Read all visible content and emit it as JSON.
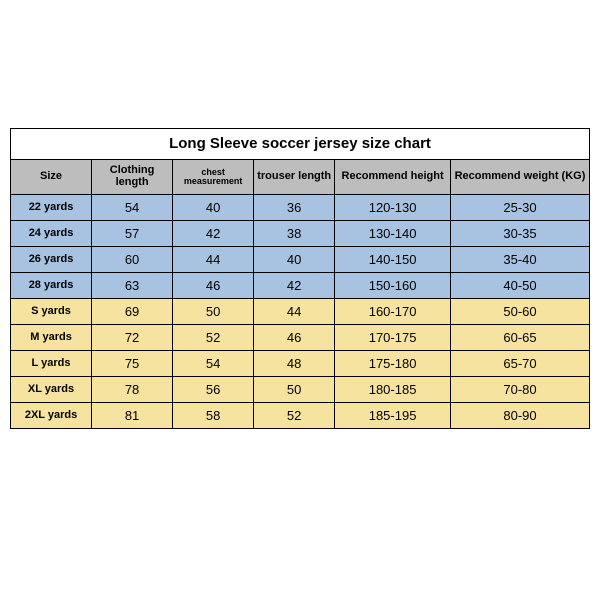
{
  "table": {
    "title": "Long Sleeve soccer jersey size chart",
    "columns": [
      "Size",
      "Clothing length",
      "chest measurement",
      "trouser length",
      "Recommend height",
      "Recommend weight (KG)"
    ],
    "col_widths_pct": [
      14,
      14,
      14,
      14,
      20,
      24
    ],
    "small_header_idx": [
      2
    ],
    "header_bg": "#bdbdbd",
    "border_color": "#000000",
    "row_groups": [
      {
        "bg": "#a8c3e2",
        "rows": [
          [
            "22 yards",
            "54",
            "40",
            "36",
            "120-130",
            "25-30"
          ],
          [
            "24 yards",
            "57",
            "42",
            "38",
            "130-140",
            "30-35"
          ],
          [
            "26 yards",
            "60",
            "44",
            "40",
            "140-150",
            "35-40"
          ],
          [
            "28 yards",
            "63",
            "46",
            "42",
            "150-160",
            "40-50"
          ]
        ]
      },
      {
        "bg": "#f6e3a0",
        "rows": [
          [
            "S yards",
            "69",
            "50",
            "44",
            "160-170",
            "50-60"
          ],
          [
            "M yards",
            "72",
            "52",
            "46",
            "170-175",
            "60-65"
          ],
          [
            "L yards",
            "75",
            "54",
            "48",
            "175-180",
            "65-70"
          ],
          [
            "XL yards",
            "78",
            "56",
            "50",
            "180-185",
            "70-80"
          ],
          [
            "2XL yards",
            "81",
            "58",
            "52",
            "185-195",
            "80-90"
          ]
        ]
      }
    ]
  }
}
